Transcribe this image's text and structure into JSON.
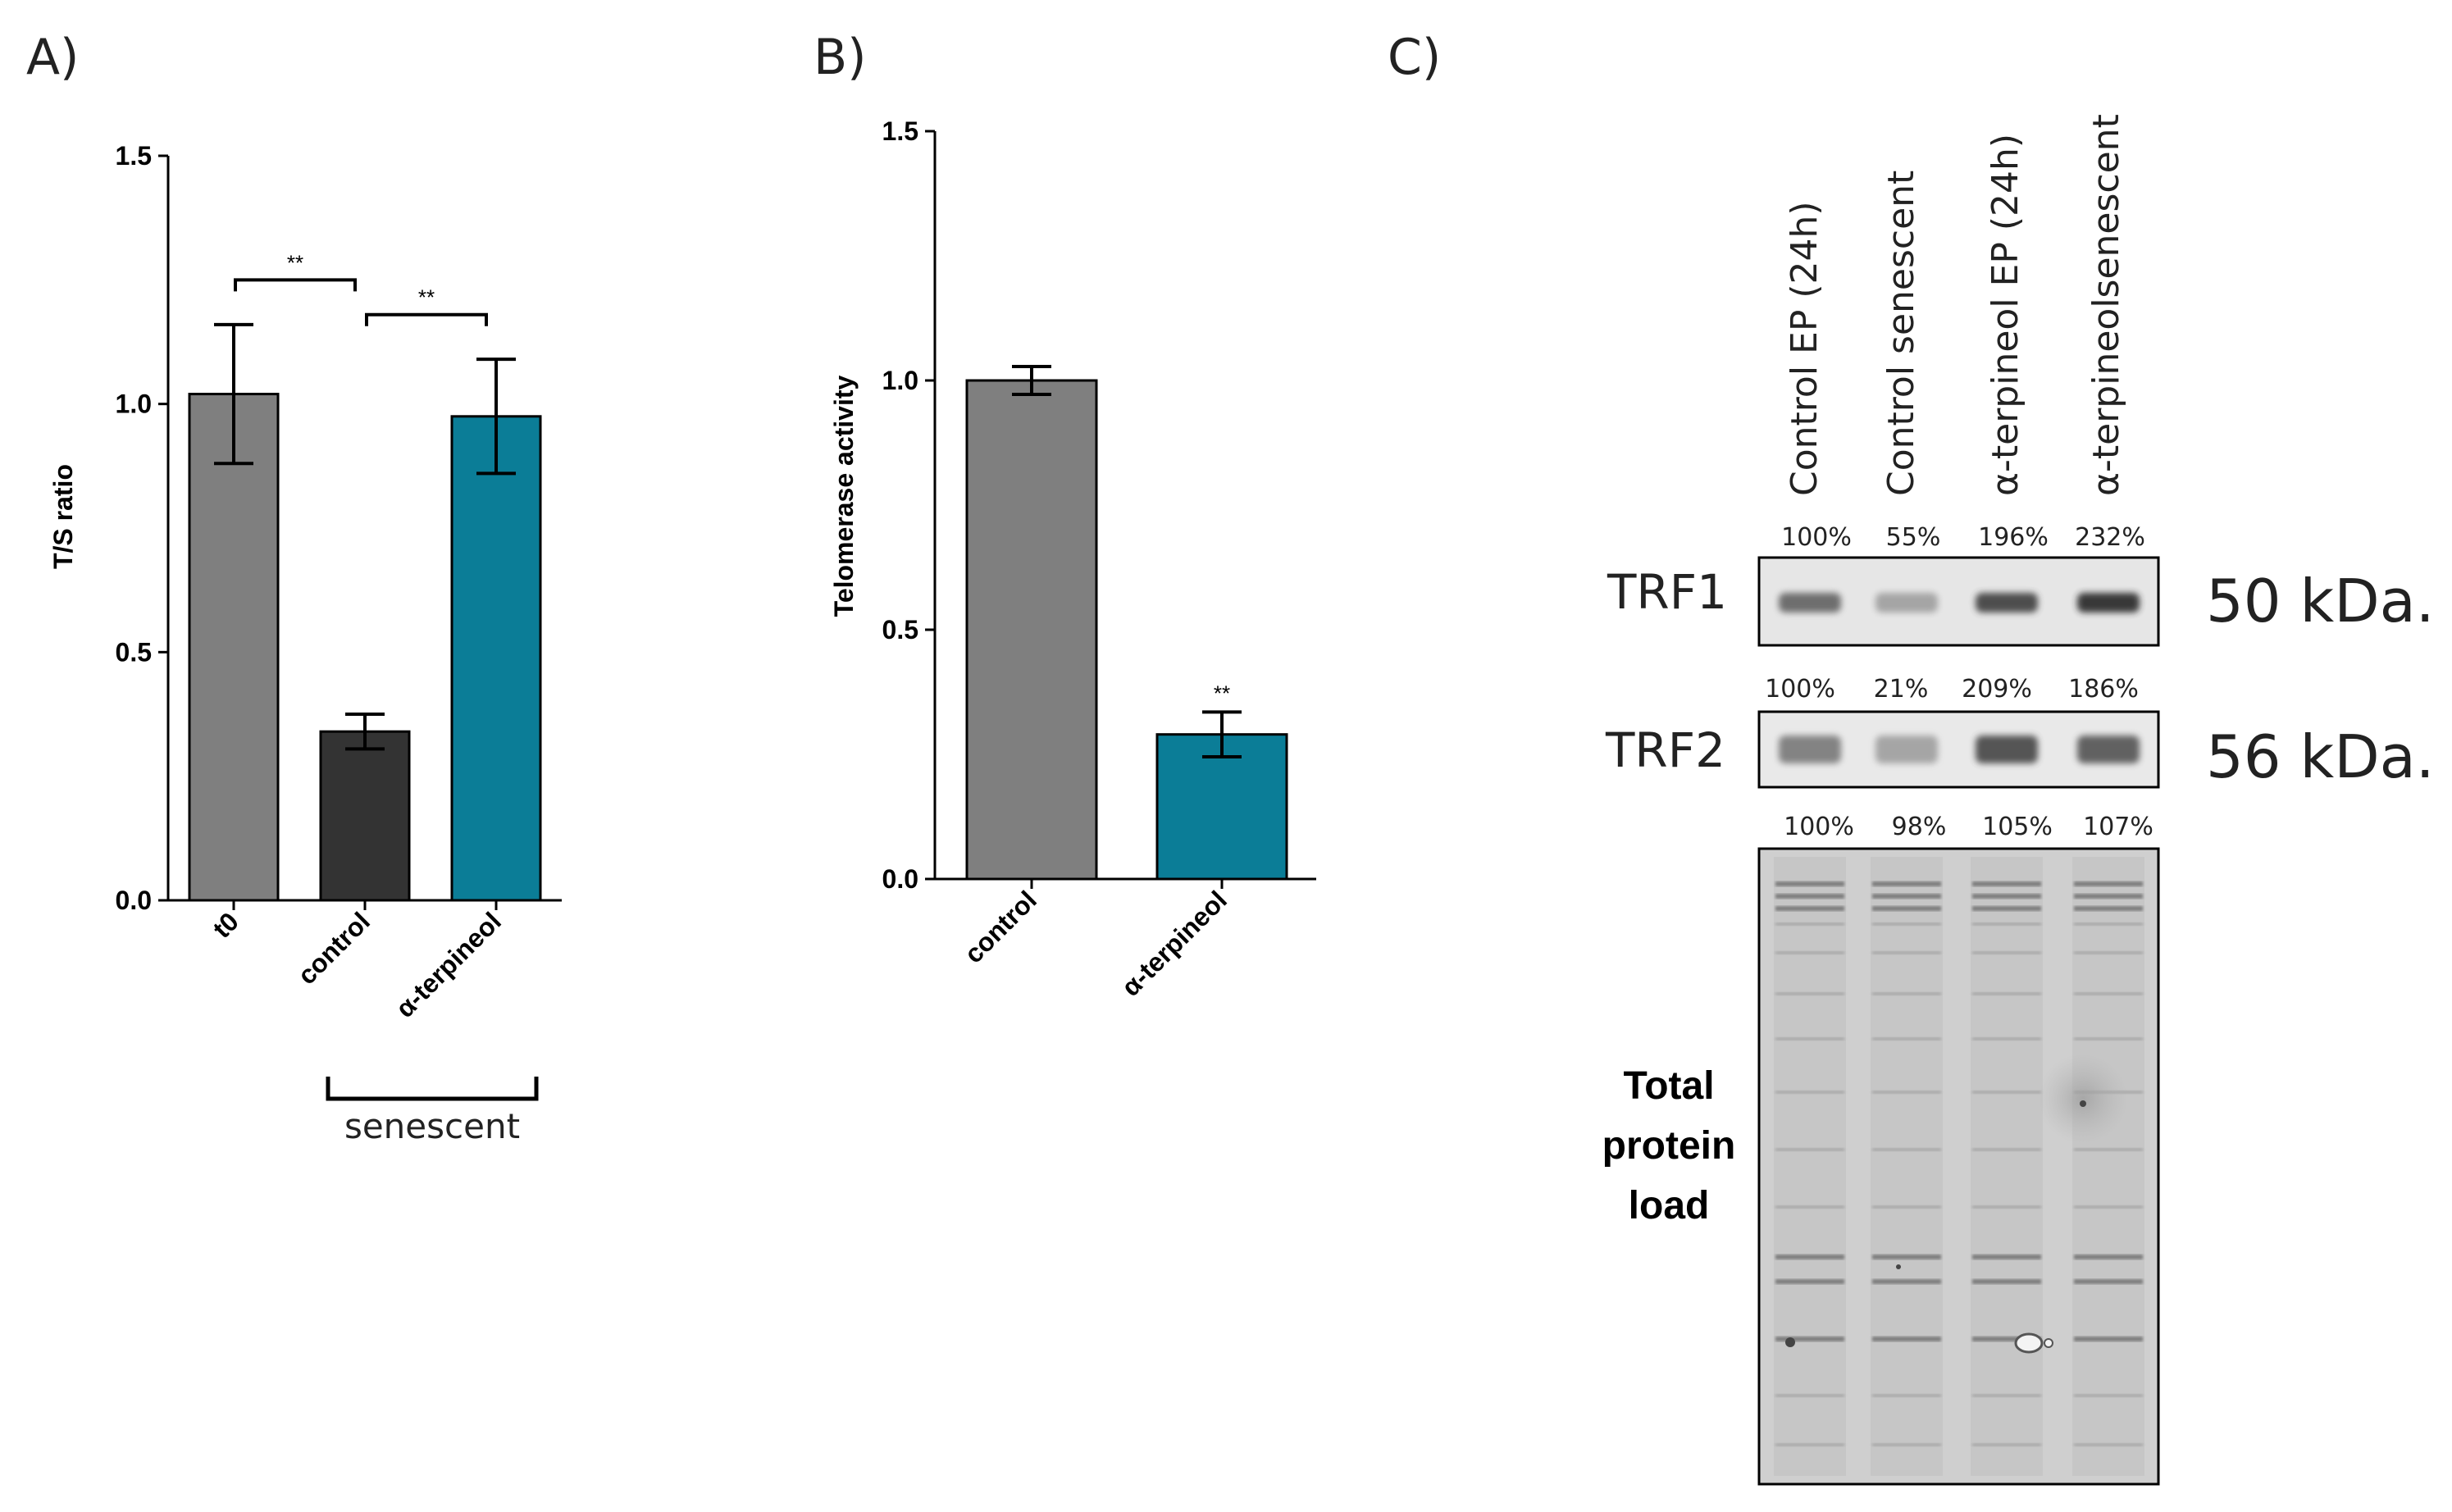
{
  "panels": {
    "a": {
      "letter": "A)"
    },
    "b": {
      "letter": "B)"
    },
    "c": {
      "letter": "C)"
    }
  },
  "chart_data": [
    {
      "type": "bar",
      "panel": "A)",
      "ylabel": "T/S ratio",
      "ylim": [
        0,
        1.5
      ],
      "yticks": [
        0.0,
        0.5,
        1.0,
        1.5
      ],
      "ytick_labels": [
        "0.0",
        "0.5",
        "1.0",
        "1.5"
      ],
      "categories": [
        "t0",
        "control",
        "α-terpineol"
      ],
      "values": [
        1.02,
        0.34,
        0.975
      ],
      "errors": [
        0.14,
        0.035,
        0.115
      ],
      "colors": [
        "#7f7f7f",
        "#333333",
        "#0b7d97"
      ],
      "group_label": "senescent",
      "significance": [
        {
          "from": 0,
          "to": 1,
          "label": "**",
          "level": 1.25
        },
        {
          "from": 1,
          "to": 2,
          "label": "**",
          "level": 1.18
        }
      ]
    },
    {
      "type": "bar",
      "panel": "B)",
      "ylabel": "Telomerase activity",
      "ylim": [
        0,
        1.5
      ],
      "yticks": [
        0.0,
        0.5,
        1.0,
        1.5
      ],
      "ytick_labels": [
        "0.0",
        "0.5",
        "1.0",
        "1.5"
      ],
      "categories": [
        "control",
        "α-terpineol"
      ],
      "values": [
        1.0,
        0.29
      ],
      "errors": [
        0.028,
        0.045
      ],
      "colors": [
        "#7f7f7f",
        "#0b7d97"
      ],
      "annotations": [
        {
          "bar": 1,
          "label": "**"
        }
      ]
    }
  ],
  "blot": {
    "lanes": [
      "Control EP (24h)",
      "Control senescent",
      "α-terpineol EP (24h)",
      "α-terpineolsenescent"
    ],
    "rows": [
      {
        "label": "TRF1",
        "size": "50 kDa.",
        "percents": [
          "100%",
          "55%",
          "196%",
          "232%"
        ],
        "intensity": [
          0.55,
          0.15,
          0.8,
          0.95
        ]
      },
      {
        "label": "TRF2",
        "size": "56 kDa.",
        "percents": [
          "100%",
          "21%",
          "209%",
          "186%"
        ],
        "intensity": [
          0.4,
          0.15,
          0.75,
          0.65
        ]
      }
    ],
    "total": {
      "label_lines": [
        "Total",
        "protein",
        "load"
      ],
      "percents": [
        "100%",
        "98%",
        "105%",
        "107%"
      ]
    }
  }
}
